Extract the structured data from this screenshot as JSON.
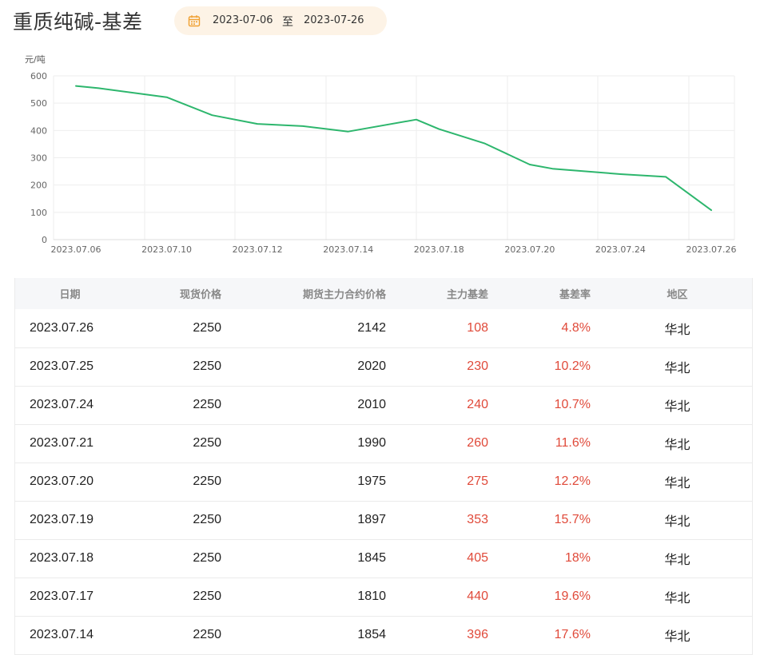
{
  "page": {
    "title": "重质纯碱-基差"
  },
  "date_range": {
    "start": "2023-07-06",
    "separator": "至",
    "end": "2023-07-26",
    "icon": "calendar-icon"
  },
  "colors": {
    "line": "#2db66d",
    "negative_red": "#e04a3a",
    "date_bg": "#fdf3e6",
    "calendar_icon": "#f0a030"
  },
  "chart_data": {
    "type": "line",
    "title": "",
    "ylabel": "元/吨",
    "xlabel": "",
    "ylim": [
      0,
      600
    ],
    "yticks": [
      0,
      100,
      200,
      300,
      400,
      500,
      600
    ],
    "xtick_labels": [
      "2023.07.06",
      "2023.07.10",
      "2023.07.12",
      "2023.07.14",
      "2023.07.18",
      "2023.07.20",
      "2023.07.24",
      "2023.07.26"
    ],
    "x": [
      "2023.07.06",
      "2023.07.07",
      "2023.07.10",
      "2023.07.11",
      "2023.07.12",
      "2023.07.13",
      "2023.07.14",
      "2023.07.17",
      "2023.07.18",
      "2023.07.19",
      "2023.07.20",
      "2023.07.21",
      "2023.07.24",
      "2023.07.25",
      "2023.07.26"
    ],
    "series": [
      {
        "values": [
          563,
          555,
          522,
          456,
          424,
          416,
          396,
          440,
          405,
          353,
          275,
          260,
          240,
          230,
          108
        ]
      }
    ],
    "grid": true,
    "legend": "none"
  },
  "table": {
    "headers": [
      "日期",
      "现货价格",
      "期货主力合约价格",
      "主力基差",
      "基差率",
      "地区"
    ],
    "rows": [
      {
        "date": "2023.07.26",
        "spot": "2250",
        "futures": "2142",
        "basis": "108",
        "rate": "4.8%",
        "region": "华北"
      },
      {
        "date": "2023.07.25",
        "spot": "2250",
        "futures": "2020",
        "basis": "230",
        "rate": "10.2%",
        "region": "华北"
      },
      {
        "date": "2023.07.24",
        "spot": "2250",
        "futures": "2010",
        "basis": "240",
        "rate": "10.7%",
        "region": "华北"
      },
      {
        "date": "2023.07.21",
        "spot": "2250",
        "futures": "1990",
        "basis": "260",
        "rate": "11.6%",
        "region": "华北"
      },
      {
        "date": "2023.07.20",
        "spot": "2250",
        "futures": "1975",
        "basis": "275",
        "rate": "12.2%",
        "region": "华北"
      },
      {
        "date": "2023.07.19",
        "spot": "2250",
        "futures": "1897",
        "basis": "353",
        "rate": "15.7%",
        "region": "华北"
      },
      {
        "date": "2023.07.18",
        "spot": "2250",
        "futures": "1845",
        "basis": "405",
        "rate": "18%",
        "region": "华北"
      },
      {
        "date": "2023.07.17",
        "spot": "2250",
        "futures": "1810",
        "basis": "440",
        "rate": "19.6%",
        "region": "华北"
      },
      {
        "date": "2023.07.14",
        "spot": "2250",
        "futures": "1854",
        "basis": "396",
        "rate": "17.6%",
        "region": "华北"
      }
    ]
  }
}
